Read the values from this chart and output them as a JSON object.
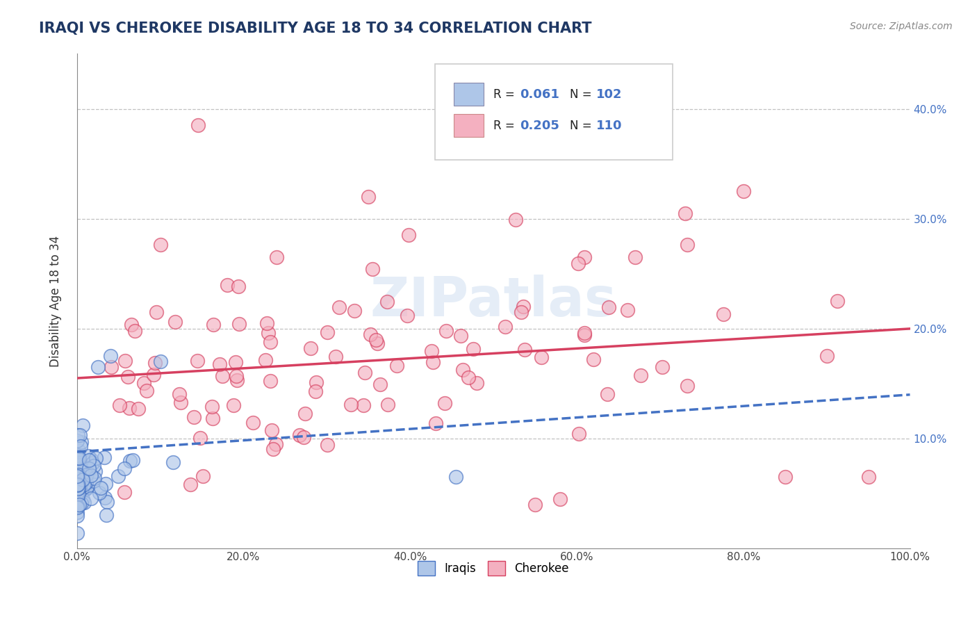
{
  "title": "IRAQI VS CHEROKEE DISABILITY AGE 18 TO 34 CORRELATION CHART",
  "source": "Source: ZipAtlas.com",
  "ylabel": "Disability Age 18 to 34",
  "xlim": [
    0,
    1.0
  ],
  "ylim": [
    0,
    0.45
  ],
  "xtick_labels": [
    "0.0%",
    "20.0%",
    "40.0%",
    "60.0%",
    "80.0%",
    "100.0%"
  ],
  "xtick_vals": [
    0.0,
    0.2,
    0.4,
    0.6,
    0.8,
    1.0
  ],
  "ytick_labels": [
    "10.0%",
    "20.0%",
    "30.0%",
    "40.0%"
  ],
  "ytick_vals": [
    0.1,
    0.2,
    0.3,
    0.4
  ],
  "iraqis_color": "#aec6e8",
  "cherokee_color": "#f4b0c0",
  "iraqis_line_color": "#4472c4",
  "cherokee_line_color": "#d64060",
  "iraqis_N": 102,
  "cherokee_N": 110,
  "iraqis_R": 0.061,
  "cherokee_R": 0.205,
  "watermark": "ZIPatlas",
  "title_color": "#1f3864",
  "grid_color": "#bbbbbb",
  "background_color": "#ffffff",
  "cherokee_line_start": 0.155,
  "cherokee_line_end": 0.2,
  "iraqi_line_start": 0.088,
  "iraqi_line_end": 0.14
}
